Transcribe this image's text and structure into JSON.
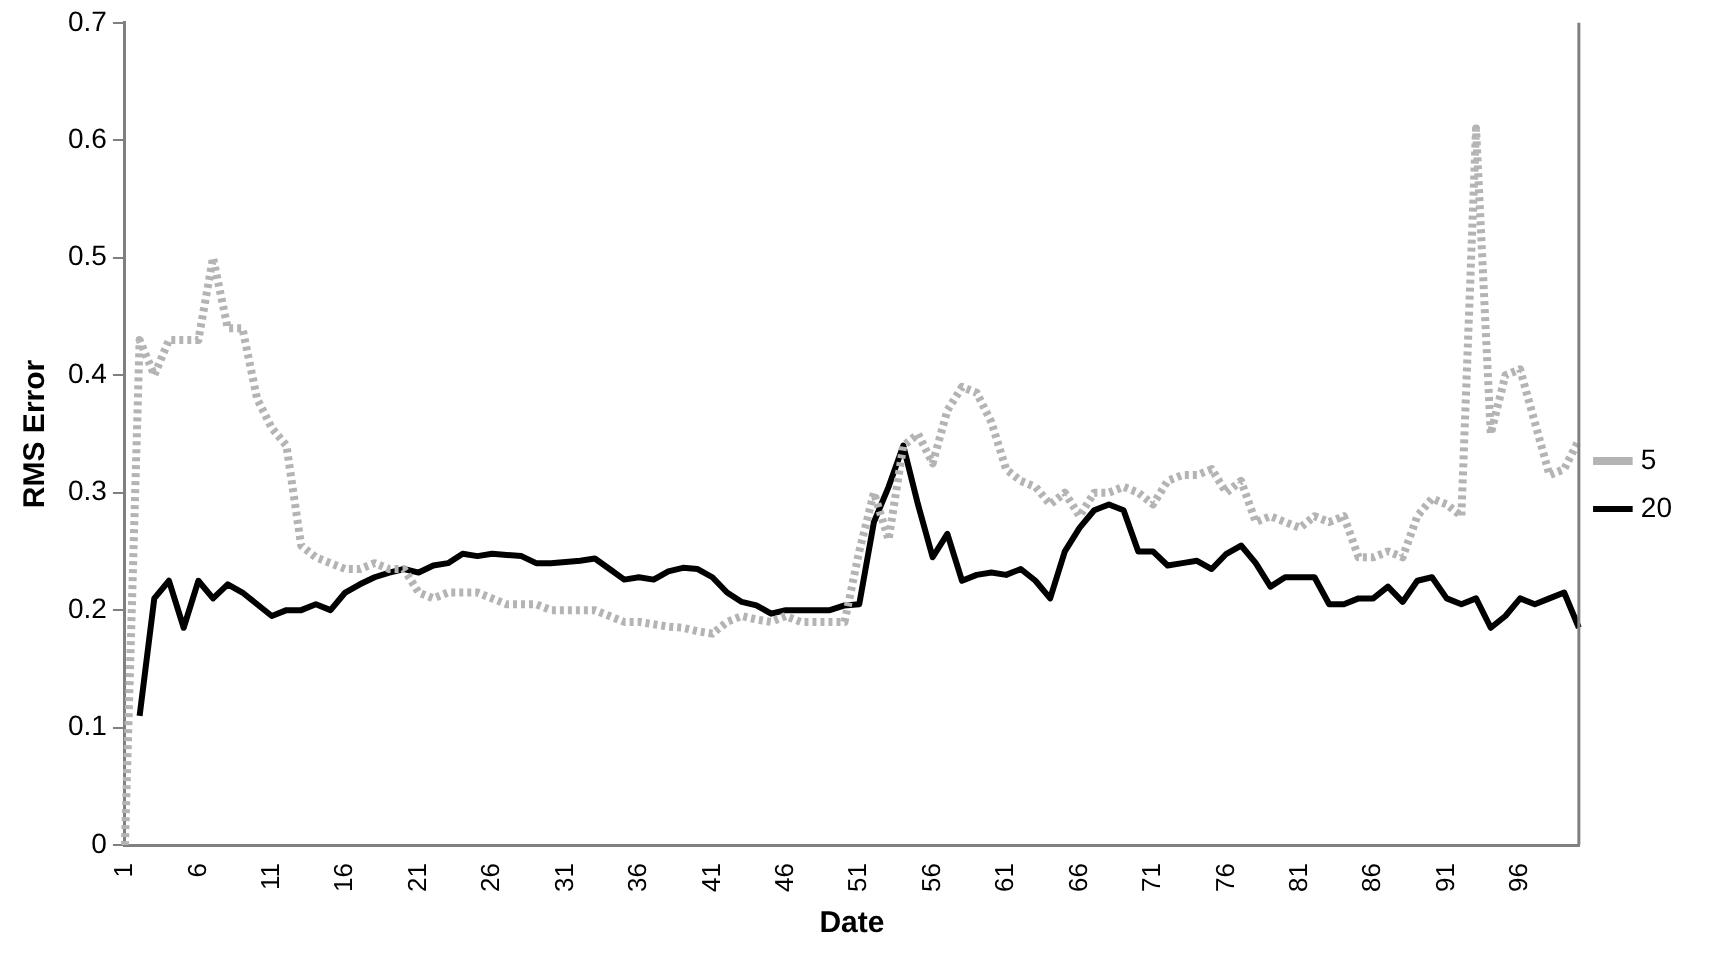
{
  "chart_data": {
    "type": "line",
    "xlabel": "Date",
    "ylabel": "RMS Error",
    "categories": [
      "1",
      null,
      null,
      null,
      null,
      "6",
      null,
      null,
      null,
      null,
      "11",
      null,
      null,
      null,
      null,
      "16",
      null,
      null,
      null,
      null,
      "21",
      null,
      null,
      null,
      null,
      "26",
      null,
      null,
      null,
      null,
      "31",
      null,
      null,
      null,
      null,
      "36",
      null,
      null,
      null,
      null,
      "41",
      null,
      null,
      null,
      null,
      "46",
      null,
      null,
      null,
      null,
      "51",
      null,
      null,
      null,
      null,
      "56",
      null,
      null,
      null,
      null,
      "61",
      null,
      null,
      null,
      null,
      "66",
      null,
      null,
      null,
      null,
      "71",
      null,
      null,
      null,
      null,
      "76",
      null,
      null,
      null,
      null,
      "81",
      null,
      null,
      null,
      null,
      "86",
      null,
      null,
      null,
      null,
      "91",
      null,
      null,
      null,
      null,
      "96",
      null,
      null,
      null,
      null
    ],
    "series": [
      {
        "name": "5",
        "color": "#b4b4b4",
        "line_style": "dotted",
        "values": [
          0.0,
          0.43,
          0.4,
          0.43,
          0.43,
          0.43,
          0.5,
          0.44,
          0.44,
          0.38,
          0.355,
          0.34,
          0.255,
          0.245,
          0.24,
          0.235,
          0.235,
          0.24,
          0.235,
          0.235,
          0.215,
          0.21,
          0.215,
          0.215,
          0.215,
          0.21,
          0.205,
          0.205,
          0.205,
          0.2,
          0.2,
          0.2,
          0.2,
          0.195,
          0.19,
          0.19,
          0.188,
          0.186,
          0.185,
          0.182,
          0.18,
          0.19,
          0.195,
          0.192,
          0.19,
          0.195,
          0.19,
          0.19,
          0.19,
          0.19,
          0.25,
          0.3,
          0.26,
          0.34,
          0.35,
          0.325,
          0.37,
          0.39,
          0.385,
          0.36,
          0.32,
          0.31,
          0.305,
          0.29,
          0.3,
          0.28,
          0.3,
          0.3,
          0.305,
          0.3,
          0.29,
          0.31,
          0.315,
          0.315,
          0.32,
          0.3,
          0.31,
          0.275,
          0.28,
          0.275,
          0.27,
          0.28,
          0.275,
          0.28,
          0.245,
          0.245,
          0.25,
          0.245,
          0.28,
          0.295,
          0.29,
          0.28,
          0.61,
          0.35,
          0.4,
          0.405,
          0.36,
          0.315,
          0.32,
          0.345
        ]
      },
      {
        "name": "20",
        "color": "#000000",
        "line_style": "solid",
        "values": [
          null,
          0.11,
          0.21,
          0.225,
          0.185,
          0.225,
          0.21,
          0.222,
          0.215,
          0.205,
          0.195,
          0.2,
          0.2,
          0.205,
          0.2,
          0.215,
          0.222,
          0.228,
          0.232,
          0.235,
          0.232,
          0.238,
          0.24,
          0.248,
          0.246,
          0.248,
          0.247,
          0.246,
          0.24,
          0.24,
          0.241,
          0.242,
          0.244,
          0.235,
          0.226,
          0.228,
          0.226,
          0.233,
          0.236,
          0.235,
          0.228,
          0.215,
          0.207,
          0.204,
          0.197,
          0.2,
          0.2,
          0.2,
          0.2,
          0.204,
          0.205,
          0.275,
          0.305,
          0.34,
          0.29,
          0.245,
          0.265,
          0.225,
          0.23,
          0.232,
          0.23,
          0.235,
          0.225,
          0.21,
          0.25,
          0.27,
          0.285,
          0.29,
          0.285,
          0.25,
          0.25,
          0.238,
          0.24,
          0.242,
          0.235,
          0.248,
          0.255,
          0.24,
          0.22,
          0.228,
          0.228,
          0.228,
          0.205,
          0.205,
          0.21,
          0.21,
          0.22,
          0.207,
          0.225,
          0.228,
          0.21,
          0.205,
          0.21,
          0.185,
          0.195,
          0.21,
          0.205,
          0.21,
          0.215,
          0.185
        ]
      }
    ],
    "ylim": [
      0,
      0.7
    ],
    "yticks": [
      0,
      0.1,
      0.2,
      0.3,
      0.4,
      0.5,
      0.6,
      0.7
    ],
    "grid": false,
    "legend": "right",
    "marker": "none"
  }
}
